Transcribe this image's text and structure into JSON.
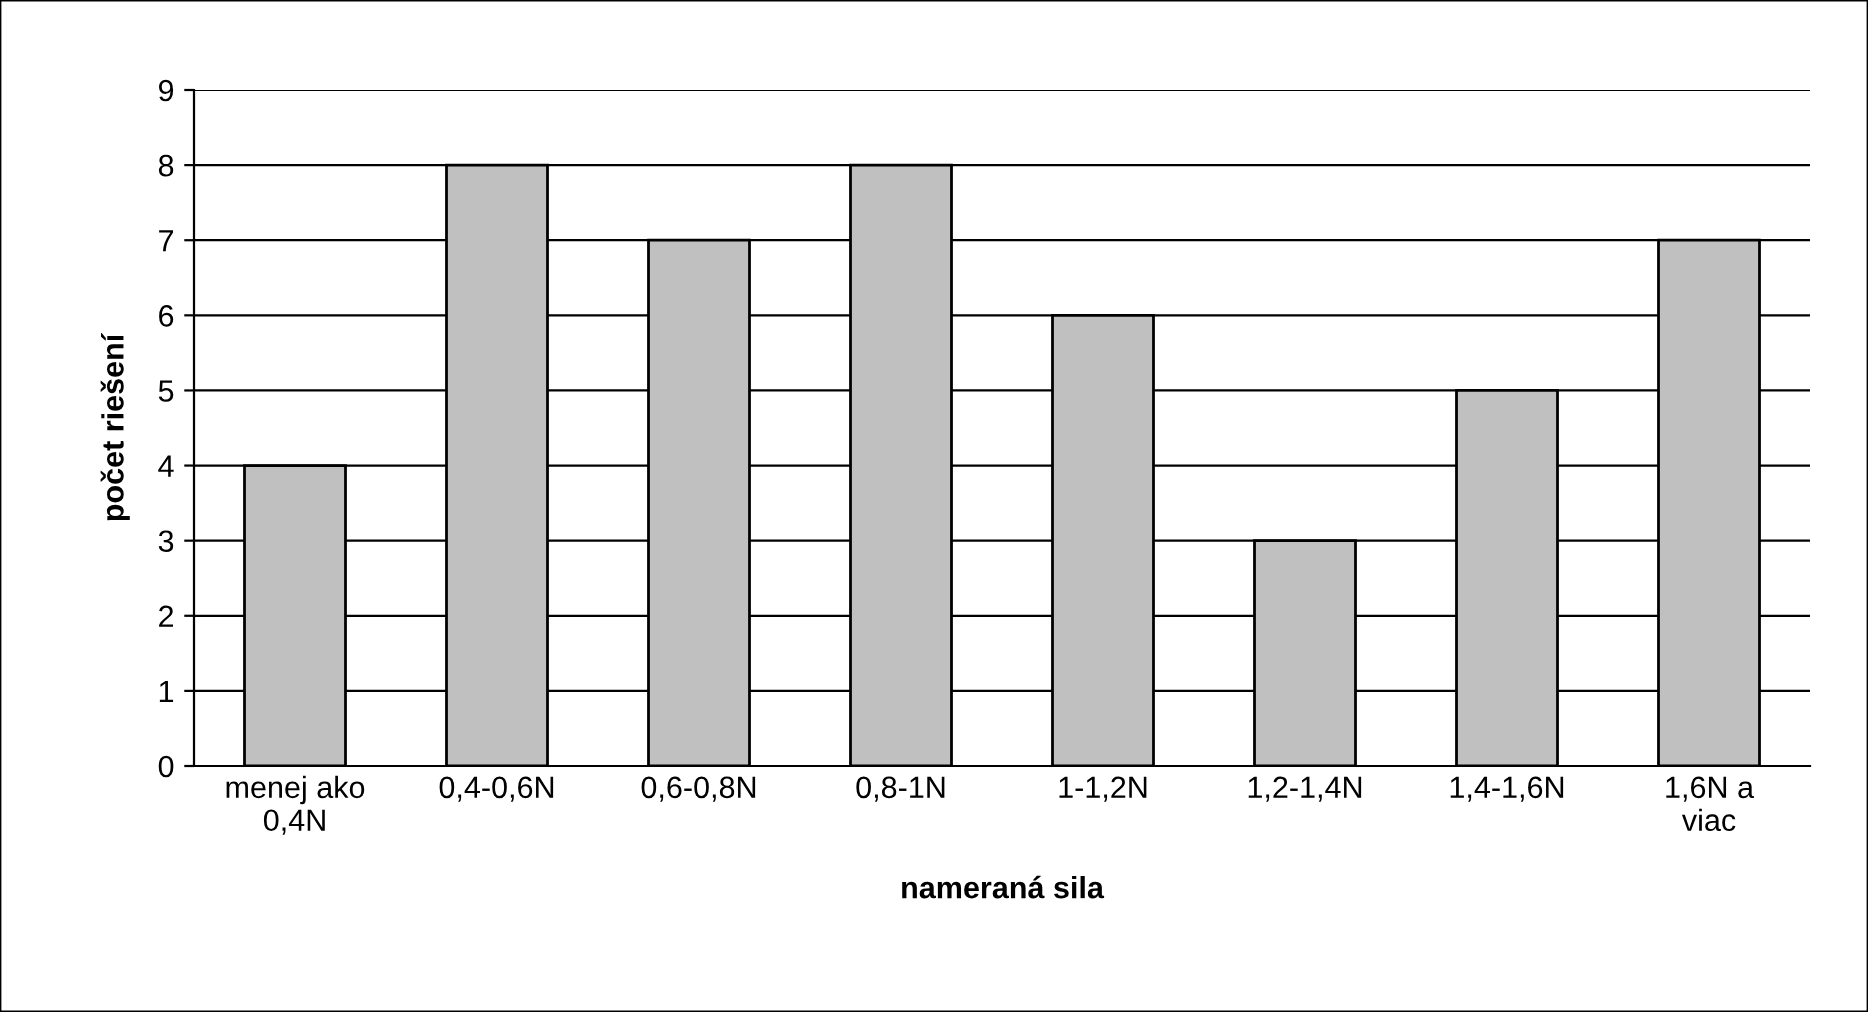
{
  "chart_data": {
    "type": "bar",
    "xlabel": "nameraná sila",
    "ylabel": "počet riešení",
    "categories": [
      "menej ako\n0,4N",
      "0,4-0,6N",
      "0,6-0,8N",
      "0,8-1N",
      "1-1,2N",
      "1,2-1,4N",
      "1,4-1,6N",
      "1,6N a\nviac"
    ],
    "values": [
      4,
      8,
      7,
      8,
      6,
      3,
      5,
      7
    ],
    "color": "#c0c0c0",
    "ylim": [
      0,
      9
    ],
    "yticks": [
      0,
      1,
      2,
      3,
      4,
      5,
      6,
      7,
      8,
      9
    ],
    "grid": "y",
    "legend": false
  }
}
